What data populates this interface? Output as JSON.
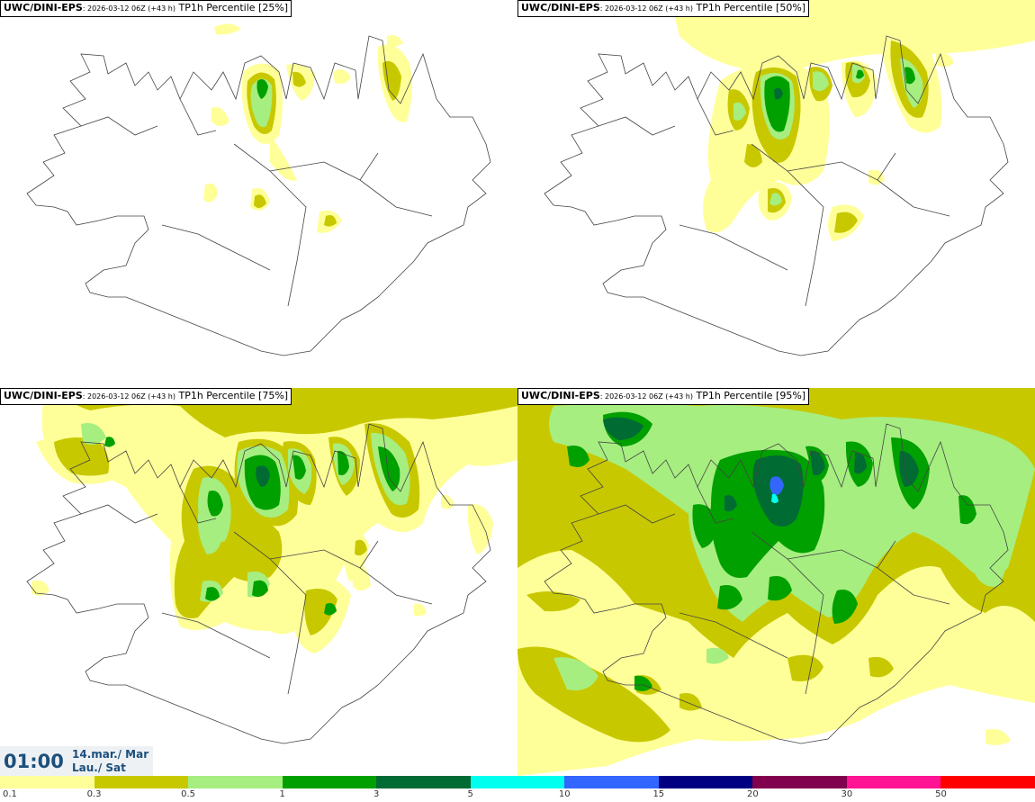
{
  "panels": [
    {
      "model": "UWC/DINI-EPS",
      "run": ": 2026-03-12 06Z (+43 h)",
      "label": "TP1h Percentile [25%]",
      "percentile": 25
    },
    {
      "model": "UWC/DINI-EPS",
      "run": ": 2026-03-12 06Z (+43 h)",
      "label": "TP1h Percentile [50%]",
      "percentile": 50
    },
    {
      "model": "UWC/DINI-EPS",
      "run": ": 2026-03-12 06Z (+43 h)",
      "label": "TP1h Percentile [75%]",
      "percentile": 75
    },
    {
      "model": "UWC/DINI-EPS",
      "run": ": 2026-03-12 06Z (+43 h)",
      "label": "TP1h Percentile [95%]",
      "percentile": 95
    }
  ],
  "valid_time": {
    "time": "01:00",
    "date_line1": "14.mar./ Mar",
    "date_line2": "Lau./ Sat"
  },
  "colorbar": {
    "colors": [
      "#ffff99",
      "#c8c800",
      "#a6ee80",
      "#00a000",
      "#006b33",
      "#00ffee",
      "#3366ff",
      "#000080",
      "#80004d",
      "#ff1493",
      "#ff0000"
    ],
    "labels": [
      "0.1",
      "0.3",
      "0.5",
      "1",
      "3",
      "5",
      "10",
      "15",
      "20",
      "30",
      "50"
    ]
  }
}
